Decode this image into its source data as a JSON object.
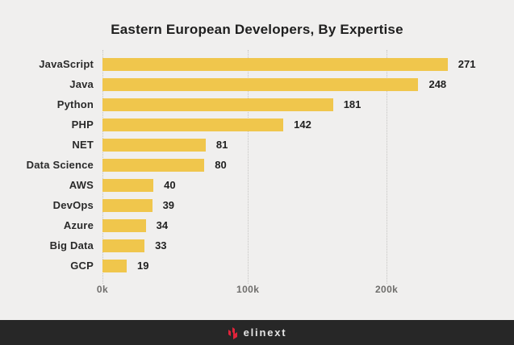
{
  "chart_data": {
    "type": "bar",
    "orientation": "horizontal",
    "title": "Eastern European Developers, By Expertise",
    "categories": [
      "JavaScript",
      "Java",
      "Python",
      "PHP",
      "NET",
      "Data Science",
      "AWS",
      "DevOps",
      "Azure",
      "Big Data",
      "GCP"
    ],
    "values": [
      271,
      248,
      181,
      142,
      81,
      80,
      40,
      39,
      34,
      33,
      19
    ],
    "value_labels": [
      "271",
      "248",
      "181",
      "142",
      "81",
      "80",
      "40",
      "39",
      "34",
      "33",
      "19"
    ],
    "xlabel": "",
    "ylabel": "",
    "xlim": [
      0,
      306
    ],
    "x_ticks": [
      {
        "label": "0k",
        "pct": 0
      },
      {
        "label": "100k",
        "pct": 37.3
      },
      {
        "label": "200k",
        "pct": 72.9
      }
    ],
    "grid": "vertical-dotted",
    "legend": "none",
    "bar_color": "#F0C64C"
  },
  "footer": {
    "brand": "elinext",
    "logo_color": "#E0233A",
    "background": "#272727"
  }
}
